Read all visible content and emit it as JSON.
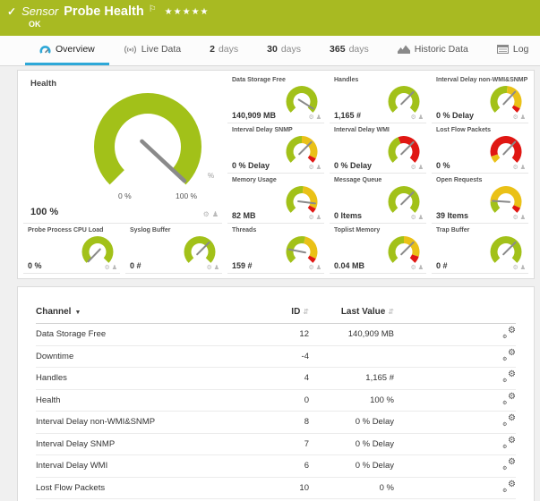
{
  "header": {
    "check": "✓",
    "kind": "Sensor",
    "title": "Probe Health",
    "flag": "⚐",
    "stars": "★★★★★",
    "status": "OK"
  },
  "tabs": [
    {
      "label": "Overview",
      "icon": "gauge-icon",
      "active": true
    },
    {
      "label": "Live Data",
      "icon": "broadcast-icon"
    },
    {
      "num": "2",
      "unit": "days"
    },
    {
      "num": "30",
      "unit": "days"
    },
    {
      "num": "365",
      "unit": "days"
    },
    {
      "label": "Historic Data",
      "icon": "chart-icon"
    },
    {
      "label": "Log",
      "icon": "log-icon"
    }
  ],
  "colors": {
    "header": "#a8ba22",
    "tab_accent": "#2da8d8",
    "green": "#a2c119",
    "yellow": "#eac117",
    "red": "#e01713",
    "needle": "#8a8a8a"
  },
  "health": {
    "title": "Health",
    "value": "100 %",
    "unit": "%",
    "min_label": "0 %",
    "max_label": "100 %",
    "needle_deg": 133,
    "segments": [
      [
        "green",
        0,
        1
      ]
    ]
  },
  "gauges": [
    {
      "title": "Data Storage Free",
      "value": "140,909 MB",
      "needle_deg": 122,
      "segments": [
        [
          "green",
          0,
          1
        ]
      ]
    },
    {
      "title": "Handles",
      "value": "1,165 #",
      "needle_deg": 45,
      "segments": [
        [
          "green",
          0,
          1
        ]
      ]
    },
    {
      "title": "Interval Delay non-WMI&SNMP",
      "value": "0 % Delay",
      "needle_deg": 43,
      "segments": [
        [
          "green",
          0,
          0.52
        ],
        [
          "yellow",
          0.52,
          0.93
        ],
        [
          "red",
          0.93,
          1
        ]
      ]
    },
    {
      "title": "Interval Delay SNMP",
      "value": "0 % Delay",
      "needle_deg": 45,
      "segments": [
        [
          "green",
          0,
          0.5
        ],
        [
          "yellow",
          0.5,
          0.93
        ],
        [
          "red",
          0.93,
          1
        ]
      ]
    },
    {
      "title": "Interval Delay WMI",
      "value": "0 % Delay",
      "needle_deg": 45,
      "segments": [
        [
          "green",
          0,
          0.42
        ],
        [
          "red",
          0.42,
          1
        ]
      ]
    },
    {
      "title": "Lost Flow Packets",
      "value": "0 %",
      "needle_deg": 43,
      "segments": [
        [
          "yellow",
          0,
          0.1
        ],
        [
          "red",
          0.1,
          1
        ]
      ]
    },
    {
      "title": "Memory Usage",
      "value": "82 MB",
      "needle_deg": 97,
      "segments": [
        [
          "green",
          0,
          0.52
        ],
        [
          "yellow",
          0.52,
          0.93
        ],
        [
          "red",
          0.93,
          1
        ]
      ]
    },
    {
      "title": "Message Queue",
      "value": "0 Items",
      "needle_deg": 45,
      "segments": [
        [
          "green",
          0,
          1
        ]
      ]
    },
    {
      "title": "Open Requests",
      "value": "39 Items",
      "needle_deg": 274,
      "segments": [
        [
          "green",
          0,
          0.17
        ],
        [
          "yellow",
          0.17,
          0.92
        ],
        [
          "red",
          0.92,
          1
        ]
      ]
    },
    {
      "title": "Probe Process CPU Load",
      "value": "0 %",
      "needle_deg": 224,
      "segments": [
        [
          "green",
          0,
          1
        ]
      ]
    },
    {
      "title": "Syslog Buffer",
      "value": "0 #",
      "needle_deg": 45,
      "segments": [
        [
          "green",
          0,
          1
        ]
      ]
    },
    {
      "title": "Threads",
      "value": "159 #",
      "needle_deg": 281,
      "segments": [
        [
          "green",
          0,
          0.55
        ],
        [
          "yellow",
          0.55,
          0.93
        ],
        [
          "red",
          0.93,
          1
        ]
      ]
    },
    {
      "title": "Toplist Memory",
      "value": "0.04 MB",
      "needle_deg": 45,
      "segments": [
        [
          "green",
          0,
          0.5
        ],
        [
          "yellow",
          0.5,
          0.9
        ],
        [
          "red",
          0.9,
          1
        ]
      ]
    },
    {
      "title": "Trap Buffer",
      "value": "0 #",
      "needle_deg": 45,
      "segments": [
        [
          "green",
          0,
          1
        ]
      ]
    }
  ],
  "table": {
    "columns": {
      "channel": "Channel",
      "id": "ID",
      "last_value": "Last Value"
    },
    "rows": [
      {
        "channel": "Data Storage Free",
        "id": "12",
        "last_value": "140,909 MB"
      },
      {
        "channel": "Downtime",
        "id": "-4",
        "last_value": ""
      },
      {
        "channel": "Handles",
        "id": "4",
        "last_value": "1,165 #"
      },
      {
        "channel": "Health",
        "id": "0",
        "last_value": "100 %"
      },
      {
        "channel": "Interval Delay non-WMI&SNMP",
        "id": "8",
        "last_value": "0 % Delay"
      },
      {
        "channel": "Interval Delay SNMP",
        "id": "7",
        "last_value": "0 % Delay"
      },
      {
        "channel": "Interval Delay WMI",
        "id": "6",
        "last_value": "0 % Delay"
      },
      {
        "channel": "Lost Flow Packets",
        "id": "10",
        "last_value": "0 %"
      }
    ]
  }
}
